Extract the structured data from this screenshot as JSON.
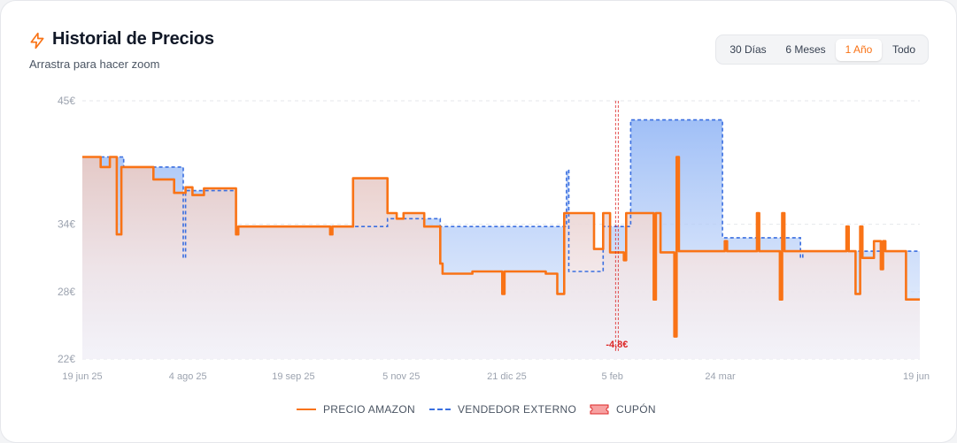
{
  "header": {
    "title": "Historial de Precios",
    "subtitle": "Arrastra para hacer zoom",
    "icon": "lightning-icon",
    "accent_color": "#f97316"
  },
  "range_selector": {
    "options": [
      "30 Días",
      "6 Meses",
      "1 Año",
      "Todo"
    ],
    "selected": "1 Año"
  },
  "legend": {
    "amazon": "PRECIO AMAZON",
    "external": "VENDEDOR EXTERNO",
    "coupon": "CUPÓN"
  },
  "chart_data": {
    "type": "line",
    "title": "",
    "xlabel": "",
    "ylabel": "",
    "ylim": [
      22,
      45
    ],
    "y_ticks": [
      {
        "value": 45,
        "label": "45€"
      },
      {
        "value": 34,
        "label": "34€"
      },
      {
        "value": 28,
        "label": "28€"
      },
      {
        "value": 22,
        "label": "22€"
      }
    ],
    "x_range": [
      "2025-06-19",
      "2026-06-19"
    ],
    "x_ticks": [
      {
        "date": "2025-06-19",
        "label": "19 jun 25"
      },
      {
        "date": "2025-08-04",
        "label": "4 ago 25"
      },
      {
        "date": "2025-09-19",
        "label": "19 sep 25"
      },
      {
        "date": "2025-11-05",
        "label": "5 nov 25"
      },
      {
        "date": "2025-12-21",
        "label": "21 dic 25"
      },
      {
        "date": "2026-02-05",
        "label": "5 feb"
      },
      {
        "date": "2026-03-24",
        "label": "24 mar"
      },
      {
        "date": "2026-06-19",
        "label": "19 jun"
      }
    ],
    "grid": true,
    "legend_position": "bottom-center",
    "series": [
      {
        "name": "PRECIO AMAZON",
        "style": "step-solid",
        "color": "#f97316",
        "points": [
          [
            "2025-06-19",
            40.0
          ],
          [
            "2025-06-25",
            40.0
          ],
          [
            "2025-06-27",
            39.1
          ],
          [
            "2025-06-30",
            39.1
          ],
          [
            "2025-07-01",
            40.0
          ],
          [
            "2025-07-03",
            40.0
          ],
          [
            "2025-07-04",
            33.1
          ],
          [
            "2025-07-06",
            33.1
          ],
          [
            "2025-07-06",
            39.1
          ],
          [
            "2025-07-19",
            39.1
          ],
          [
            "2025-07-20",
            38.0
          ],
          [
            "2025-07-28",
            38.0
          ],
          [
            "2025-07-29",
            36.8
          ],
          [
            "2025-08-02",
            36.8
          ],
          [
            "2025-08-03",
            37.3
          ],
          [
            "2025-08-05",
            37.3
          ],
          [
            "2025-08-06",
            36.6
          ],
          [
            "2025-08-10",
            36.6
          ],
          [
            "2025-08-11",
            37.2
          ],
          [
            "2025-08-24",
            37.2
          ],
          [
            "2025-08-25",
            33.1
          ],
          [
            "2025-08-26",
            33.8
          ],
          [
            "2025-10-04",
            33.8
          ],
          [
            "2025-10-05",
            33.1
          ],
          [
            "2025-10-06",
            33.8
          ],
          [
            "2025-10-14",
            33.8
          ],
          [
            "2025-10-15",
            38.1
          ],
          [
            "2025-10-29",
            38.1
          ],
          [
            "2025-10-30",
            35.0
          ],
          [
            "2025-11-02",
            35.0
          ],
          [
            "2025-11-03",
            34.5
          ],
          [
            "2025-11-05",
            34.5
          ],
          [
            "2025-11-06",
            35.0
          ],
          [
            "2025-11-14",
            35.0
          ],
          [
            "2025-11-15",
            33.8
          ],
          [
            "2025-11-21",
            33.8
          ],
          [
            "2025-11-22",
            30.5
          ],
          [
            "2025-11-23",
            29.6
          ],
          [
            "2025-12-05",
            29.6
          ],
          [
            "2025-12-06",
            29.8
          ],
          [
            "2025-12-18",
            29.8
          ],
          [
            "2025-12-19",
            27.8
          ],
          [
            "2025-12-20",
            29.8
          ],
          [
            "2026-01-06",
            29.8
          ],
          [
            "2026-01-07",
            29.6
          ],
          [
            "2026-01-11",
            29.6
          ],
          [
            "2026-01-12",
            27.8
          ],
          [
            "2026-01-14",
            27.8
          ],
          [
            "2026-01-15",
            35.0
          ],
          [
            "2026-01-27",
            35.0
          ],
          [
            "2026-01-28",
            31.8
          ],
          [
            "2026-01-31",
            31.8
          ],
          [
            "2026-02-01",
            35.0
          ],
          [
            "2026-02-03",
            35.0
          ],
          [
            "2026-02-04",
            31.5
          ],
          [
            "2026-02-09",
            31.5
          ],
          [
            "2026-02-10",
            30.8
          ],
          [
            "2026-02-11",
            35.0
          ],
          [
            "2026-02-22",
            35.0
          ],
          [
            "2026-02-23",
            27.3
          ],
          [
            "2026-02-24",
            35.0
          ],
          [
            "2026-02-26",
            31.5
          ],
          [
            "2026-03-03",
            31.5
          ],
          [
            "2026-03-04",
            24.0
          ],
          [
            "2026-03-05",
            40.0
          ],
          [
            "2026-03-06",
            31.6
          ],
          [
            "2026-03-24",
            31.6
          ],
          [
            "2026-03-26",
            32.5
          ],
          [
            "2026-03-27",
            31.6
          ],
          [
            "2026-04-08",
            31.6
          ],
          [
            "2026-04-09",
            35.0
          ],
          [
            "2026-04-10",
            31.6
          ],
          [
            "2026-04-18",
            31.6
          ],
          [
            "2026-04-19",
            27.3
          ],
          [
            "2026-04-20",
            35.0
          ],
          [
            "2026-04-21",
            31.6
          ],
          [
            "2026-05-17",
            31.6
          ],
          [
            "2026-05-18",
            33.8
          ],
          [
            "2026-05-19",
            31.6
          ],
          [
            "2026-05-21",
            31.6
          ],
          [
            "2026-05-22",
            27.8
          ],
          [
            "2026-05-24",
            33.8
          ],
          [
            "2026-05-25",
            31.0
          ],
          [
            "2026-05-29",
            31.0
          ],
          [
            "2026-05-30",
            32.5
          ],
          [
            "2026-06-01",
            32.5
          ],
          [
            "2026-06-02",
            30.0
          ],
          [
            "2026-06-03",
            32.5
          ],
          [
            "2026-06-04",
            31.6
          ],
          [
            "2026-06-12",
            31.6
          ],
          [
            "2026-06-13",
            27.3
          ],
          [
            "2026-06-19",
            27.3
          ]
        ]
      },
      {
        "name": "VENDEDOR EXTERNO",
        "style": "step-dashed",
        "color": "#3b6fe0",
        "points": [
          [
            "2025-06-19",
            40.0
          ],
          [
            "2025-07-06",
            40.0
          ],
          [
            "2025-07-07",
            39.1
          ],
          [
            "2025-07-30",
            39.1
          ],
          [
            "2025-08-01",
            39.1
          ],
          [
            "2025-08-02",
            31.0
          ],
          [
            "2025-08-03",
            37.0
          ],
          [
            "2025-08-24",
            37.0
          ],
          [
            "2025-08-25",
            33.8
          ],
          [
            "2025-10-29",
            33.8
          ],
          [
            "2025-10-30",
            34.5
          ],
          [
            "2025-11-21",
            34.5
          ],
          [
            "2025-11-22",
            33.8
          ],
          [
            "2026-01-15",
            33.8
          ],
          [
            "2026-01-16",
            38.8
          ],
          [
            "2026-01-17",
            29.8
          ],
          [
            "2026-01-31",
            29.8
          ],
          [
            "2026-02-01",
            33.8
          ],
          [
            "2026-02-12",
            33.8
          ],
          [
            "2026-02-13",
            43.3
          ],
          [
            "2026-03-24",
            43.3
          ],
          [
            "2026-03-25",
            32.8
          ],
          [
            "2026-04-27",
            32.8
          ],
          [
            "2026-04-28",
            31.0
          ],
          [
            "2026-04-29",
            31.6
          ],
          [
            "2026-06-19",
            31.6
          ]
        ]
      }
    ],
    "annotations": [
      {
        "type": "coupon",
        "date": "2026-02-07",
        "label": "-4,8€",
        "color": "#dc2626"
      }
    ]
  }
}
